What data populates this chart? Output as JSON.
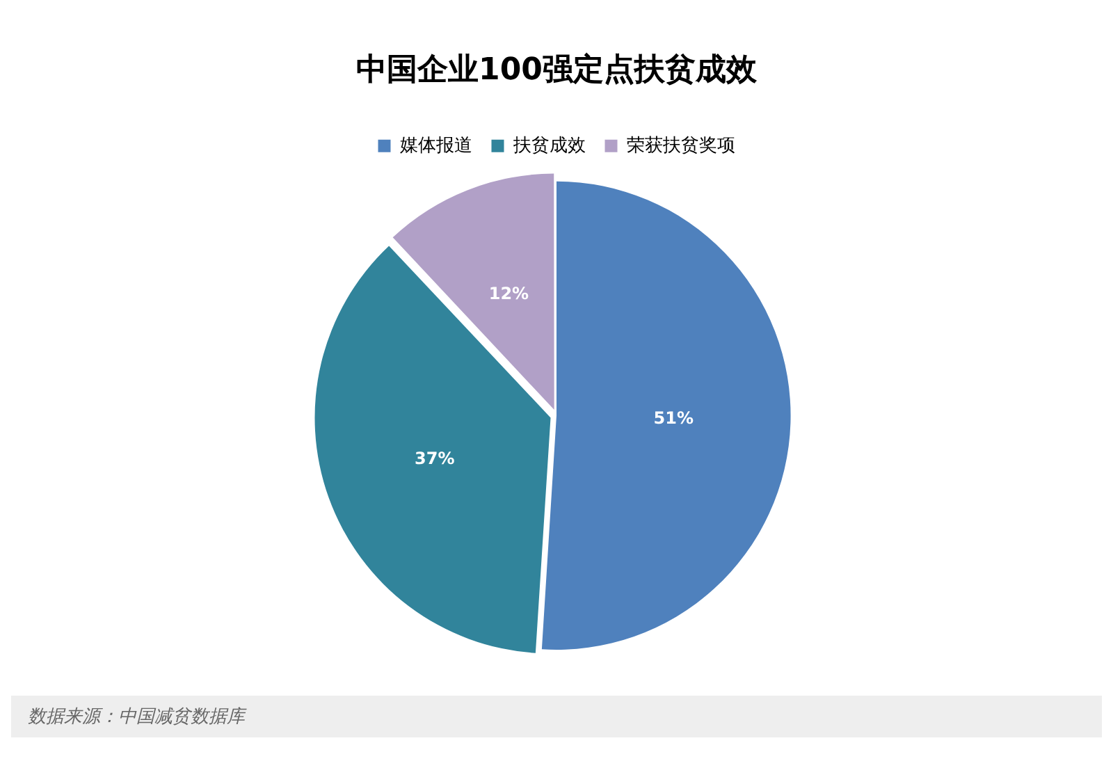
{
  "chart_data": {
    "type": "pie",
    "title": "中国企业100强定点扶贫成效",
    "categories": [
      "媒体报道",
      "扶贫成效",
      "荣获扶贫奖项"
    ],
    "values": [
      51,
      37,
      12
    ],
    "colors": [
      "#4f81bd",
      "#31849b",
      "#b1a0c7"
    ],
    "value_labels": [
      "51%",
      "37%",
      "12%"
    ],
    "legend": "top",
    "annotations": [
      "数据来源：中国减贫数据库"
    ]
  }
}
